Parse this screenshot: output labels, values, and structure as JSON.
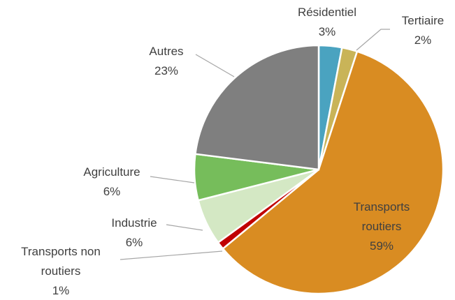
{
  "chart_data": {
    "type": "pie",
    "categories": [
      "Résidentiel",
      "Tertiaire",
      "Transports routiers",
      "Transports non routiers",
      "Industrie",
      "Agriculture",
      "Autres"
    ],
    "values": [
      3,
      2,
      59,
      1,
      6,
      6,
      23
    ],
    "value_labels": [
      "3%",
      "2%",
      "59%",
      "1%",
      "6%",
      "6%",
      "23%"
    ],
    "colors": [
      "#4aa3c0",
      "#c9b458",
      "#d98c22",
      "#c00000",
      "#d4e8c4",
      "#76bd5b",
      "#7f7f7f"
    ]
  }
}
